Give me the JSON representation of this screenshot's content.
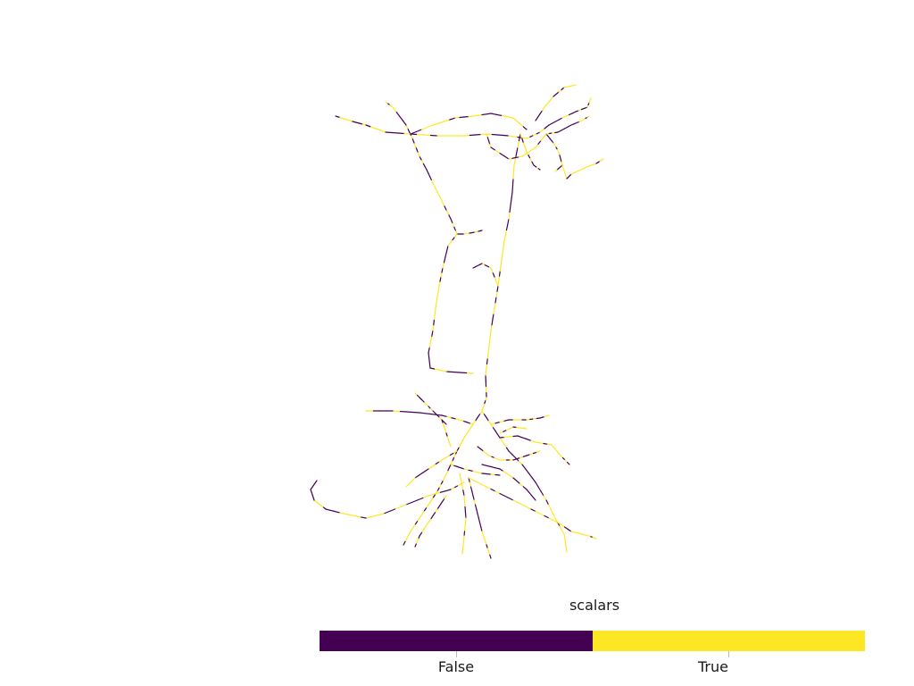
{
  "scalar_bar": {
    "title": "scalars",
    "categories": [
      {
        "label": "False",
        "color": "#440154"
      },
      {
        "label": "True",
        "color": "#fde725"
      }
    ]
  },
  "render": {
    "background": "#ffffff",
    "segment_colors": [
      "#440154",
      "#fde725"
    ]
  }
}
